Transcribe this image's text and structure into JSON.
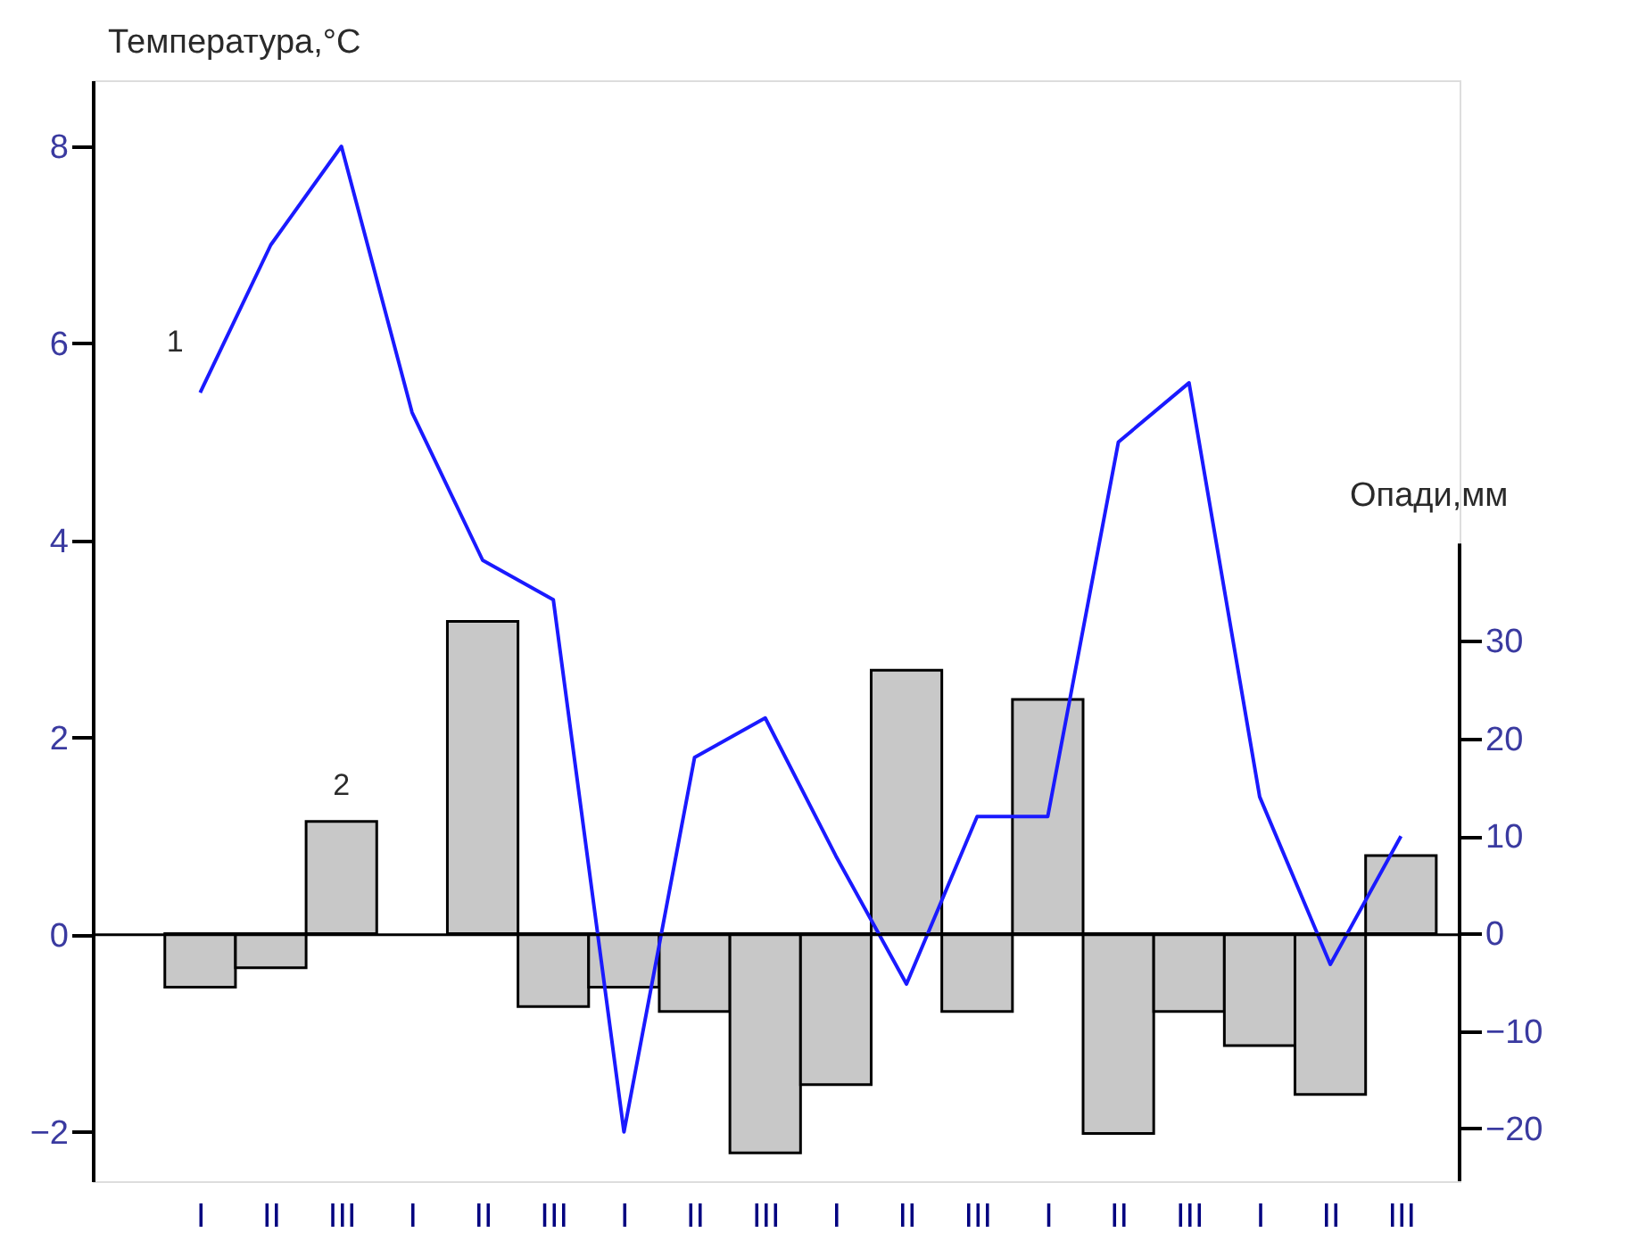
{
  "chart_data": {
    "type": "line",
    "categories": [
      "I",
      "II",
      "III",
      "I",
      "II",
      "III",
      "I",
      "II",
      "III",
      "I",
      "II",
      "III",
      "I",
      "II",
      "III",
      "I",
      "II",
      "III"
    ],
    "ylabel": "Температура,°C",
    "y2label": "Опади,мм",
    "ylim": [
      -2.5,
      8.67
    ],
    "yticks": [
      -2,
      0,
      2,
      4,
      6,
      8
    ],
    "y2lim": [
      -25.4,
      87.5
    ],
    "y2ticks": [
      -20,
      -10,
      0,
      10,
      20,
      30
    ],
    "grid": false,
    "ref_lines": [
      {
        "axis": "y",
        "value": 0,
        "color": "#000000"
      }
    ],
    "series": [
      {
        "name": "2",
        "type": "bar",
        "axis": "y2",
        "color": "#c8c8c8",
        "values": [
          -5.5,
          -3.5,
          11.5,
          null,
          32,
          -7.5,
          -5.5,
          -8,
          -22.5,
          -15.5,
          27,
          -8,
          24,
          -20.5,
          -8,
          -11.5,
          -16.5,
          8
        ]
      },
      {
        "name": "1",
        "color": "#1a1aff",
        "values": [
          5.5,
          7.0,
          8.0,
          5.3,
          3.8,
          3.4,
          -2.0,
          1.8,
          2.2,
          0.8,
          -0.5,
          1.2,
          1.2,
          5.0,
          5.6,
          1.4,
          -0.3,
          1.0
        ]
      }
    ]
  }
}
